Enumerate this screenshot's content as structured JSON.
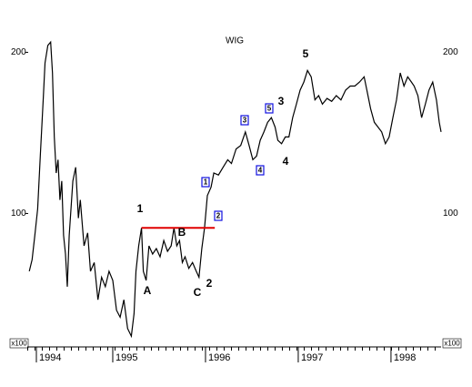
{
  "chart_data": {
    "type": "line",
    "title": "WIG",
    "unit_label": "x100",
    "log_scale": true,
    "xlim": [
      1994.0,
      1998.54
    ],
    "ylim": [
      57,
      210
    ],
    "xticks": [
      1994,
      1995,
      1996,
      1997,
      1998
    ],
    "yticks": [
      100,
      200
    ],
    "series": [
      {
        "name": "WIG",
        "color": "#000000",
        "x": [
          1994.1,
          1994.13,
          1994.16,
          1994.19,
          1994.22,
          1994.25,
          1994.27,
          1994.3,
          1994.33,
          1994.35,
          1994.37,
          1994.39,
          1994.41,
          1994.43,
          1994.45,
          1994.47,
          1994.49,
          1994.51,
          1994.53,
          1994.57,
          1994.6,
          1994.63,
          1994.65,
          1994.69,
          1994.73,
          1994.76,
          1994.8,
          1994.84,
          1994.88,
          1994.92,
          1994.96,
          1995.0,
          1995.04,
          1995.08,
          1995.12,
          1995.16,
          1995.2,
          1995.23,
          1995.25,
          1995.28,
          1995.31,
          1995.33,
          1995.36,
          1995.39,
          1995.43,
          1995.47,
          1995.51,
          1995.55,
          1995.59,
          1995.63,
          1995.66,
          1995.69,
          1995.72,
          1995.75,
          1995.78,
          1995.82,
          1995.86,
          1995.9,
          1995.93,
          1995.96,
          1995.99,
          1996.02,
          1996.06,
          1996.09,
          1996.14,
          1996.19,
          1996.24,
          1996.28,
          1996.33,
          1996.38,
          1996.43,
          1996.47,
          1996.51,
          1996.55,
          1996.59,
          1996.63,
          1996.67,
          1996.71,
          1996.75,
          1996.78,
          1996.82,
          1996.86,
          1996.9,
          1996.94,
          1996.98,
          1997.02,
          1997.06,
          1997.1,
          1997.14,
          1997.18,
          1997.22,
          1997.26,
          1997.31,
          1997.36,
          1997.41,
          1997.46,
          1997.51,
          1997.56,
          1997.61,
          1997.66,
          1997.71,
          1997.74,
          1997.78,
          1997.82,
          1997.86,
          1997.9,
          1997.94,
          1997.98,
          1998.02,
          1998.06,
          1998.1,
          1998.14,
          1998.18,
          1998.22,
          1998.25,
          1998.29,
          1998.33,
          1998.37,
          1998.41,
          1998.45,
          1998.49,
          1998.52,
          1998.54
        ],
        "values": [
          78,
          82,
          91,
          102,
          129,
          163,
          191,
          206,
          209,
          183,
          139,
          119,
          126,
          106,
          115,
          91,
          84,
          73,
          91,
          115,
          122,
          98,
          106,
          87,
          92,
          78,
          81,
          69,
          76,
          73,
          78,
          75,
          66,
          64,
          69,
          61,
          59,
          65,
          78,
          87,
          94,
          78,
          75,
          87,
          84,
          86,
          83,
          89,
          85,
          87,
          94,
          87,
          89,
          81,
          83,
          79,
          81,
          78,
          76,
          86,
          94,
          108,
          112,
          119,
          118,
          122,
          126,
          124,
          132,
          134,
          142,
          134,
          126,
          128,
          137,
          142,
          148,
          151,
          145,
          137,
          135,
          139,
          139,
          151,
          160,
          170,
          176,
          185,
          180,
          163,
          166,
          160,
          164,
          162,
          166,
          163,
          170,
          173,
          173,
          176,
          180,
          170,
          157,
          148,
          145,
          142,
          135,
          139,
          151,
          163,
          183,
          173,
          180,
          176,
          173,
          166,
          151,
          160,
          170,
          176,
          163,
          148,
          142
        ]
      }
    ],
    "reference_line": {
      "value": 94,
      "x": [
        1995.31,
        1996.1
      ],
      "color": "#e00000"
    },
    "annotations": [
      {
        "text": "1",
        "color": "#1010e0",
        "boxed": false
      },
      {
        "text": "A",
        "color": "#e00000",
        "boxed": false
      },
      {
        "text": "B",
        "color": "#e00000",
        "boxed": false
      },
      {
        "text": "C",
        "color": "#e00000",
        "boxed": false
      },
      {
        "text": "2",
        "color": "#1010e0",
        "boxed": false
      },
      {
        "text": "1",
        "color": "#1010e0",
        "boxed": true
      },
      {
        "text": "2",
        "color": "#1010e0",
        "boxed": true
      },
      {
        "text": "3",
        "color": "#1010e0",
        "boxed": true
      },
      {
        "text": "4",
        "color": "#1010e0",
        "boxed": true
      },
      {
        "text": "5",
        "color": "#1010e0",
        "boxed": true
      },
      {
        "text": "3",
        "color": "#1010e0",
        "boxed": false
      },
      {
        "text": "4",
        "color": "#1010e0",
        "boxed": false
      },
      {
        "text": "5",
        "color": "#1010e0",
        "boxed": false
      }
    ]
  }
}
